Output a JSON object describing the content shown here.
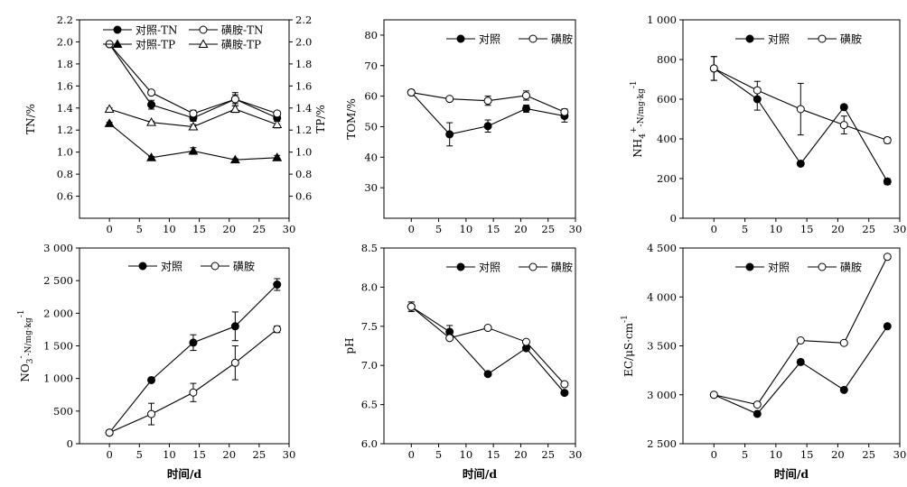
{
  "chart_data": [
    {
      "id": "panel-tn-tp",
      "type": "line",
      "x": [
        0,
        7,
        14,
        21,
        28
      ],
      "xlim": [
        -5,
        30
      ],
      "xticks": [
        0,
        5,
        10,
        15,
        20,
        25,
        30
      ],
      "xlabel": "",
      "ylabel": "TN/%",
      "ylim": [
        0.4,
        2.2
      ],
      "yticks": [
        0.6,
        0.8,
        1.0,
        1.2,
        1.4,
        1.6,
        1.8,
        2.0,
        2.2
      ],
      "ytick_labels": [
        "0.6",
        "0.8",
        "1.0",
        "1.2",
        "1.4",
        "1.6",
        "1.8",
        "2.0",
        "2.2"
      ],
      "y2label": "TP/%",
      "y2ticks": [
        0.6,
        0.8,
        1.0,
        1.2,
        1.4,
        1.6,
        1.8,
        2.0,
        2.2
      ],
      "y2tick_labels": [
        "0.6",
        "0.8",
        "1.0",
        "1.2",
        "1.4",
        "1.6",
        "1.8",
        "2.0",
        "2.2"
      ],
      "legend_position": "top-right",
      "series": [
        {
          "name": "对照-TN",
          "marker": "circle-filled",
          "values": [
            1.98,
            1.43,
            1.31,
            1.48,
            1.31
          ],
          "errors": [
            0,
            0.04,
            0.03,
            0.04,
            0.03
          ]
        },
        {
          "name": "磺胺-TN",
          "marker": "circle-open",
          "values": [
            1.98,
            1.54,
            1.35,
            1.48,
            1.35
          ],
          "errors": [
            0,
            0.02,
            0.03,
            0.06,
            0.02
          ]
        },
        {
          "name": "对照-TP",
          "marker": "triangle-filled",
          "values": [
            1.26,
            0.95,
            1.01,
            0.93,
            0.95
          ],
          "errors": [
            0.01,
            0.01,
            0.03,
            0.01,
            0.02
          ]
        },
        {
          "name": "磺胺-TP",
          "marker": "triangle-open",
          "values": [
            1.39,
            1.27,
            1.23,
            1.39,
            1.25
          ],
          "errors": [
            0.01,
            0.01,
            0.02,
            0.03,
            0.03
          ]
        }
      ]
    },
    {
      "id": "panel-tom",
      "type": "line",
      "x": [
        0,
        7,
        14,
        21,
        28
      ],
      "xlim": [
        -5,
        30
      ],
      "xticks": [
        0,
        5,
        10,
        15,
        20,
        25,
        30
      ],
      "xlabel": "",
      "ylabel": "TOM/%",
      "ylim": [
        20,
        85
      ],
      "yticks": [
        30,
        40,
        50,
        60,
        70,
        80
      ],
      "ytick_labels": [
        "30",
        "40",
        "50",
        "60",
        "70",
        "80"
      ],
      "legend_position": "top-right",
      "series": [
        {
          "name": "对照",
          "marker": "circle-filled",
          "values": [
            61.2,
            47.5,
            50.2,
            55.9,
            53.5
          ],
          "errors": [
            0.8,
            3.8,
            2.0,
            1.2,
            2.0
          ]
        },
        {
          "name": "磺胺",
          "marker": "circle-open",
          "values": [
            61.2,
            59.1,
            58.5,
            60.2,
            54.8
          ],
          "errors": [
            0.8,
            0.6,
            1.5,
            1.5,
            1.0
          ]
        }
      ]
    },
    {
      "id": "panel-nh4",
      "type": "line",
      "x": [
        0,
        7,
        14,
        21,
        28
      ],
      "xlim": [
        -5,
        30
      ],
      "xticks": [
        0,
        5,
        10,
        15,
        20,
        25,
        30
      ],
      "xlabel": "",
      "ylabel": "NH4+-N/mg·kg-1",
      "ylim": [
        0,
        1000
      ],
      "yticks": [
        0,
        200,
        400,
        600,
        800,
        1000
      ],
      "ytick_labels": [
        "0",
        "200",
        "400",
        "600",
        "800",
        "1 000"
      ],
      "legend_position": "top-right",
      "series": [
        {
          "name": "对照",
          "marker": "circle-filled",
          "values": [
            755,
            600,
            275,
            560,
            185
          ],
          "errors": [
            60,
            55,
            10,
            12,
            15
          ]
        },
        {
          "name": "磺胺",
          "marker": "circle-open",
          "values": [
            755,
            645,
            550,
            470,
            393
          ],
          "errors": [
            60,
            45,
            130,
            45,
            15
          ]
        }
      ]
    },
    {
      "id": "panel-no3",
      "type": "line",
      "x": [
        0,
        7,
        14,
        21,
        28
      ],
      "xlim": [
        -5,
        30
      ],
      "xticks": [
        0,
        5,
        10,
        15,
        20,
        25,
        30
      ],
      "xlabel": "时间/d",
      "ylabel": "NO3--N/mg·kg-1",
      "ylim": [
        0,
        3000
      ],
      "yticks": [
        0,
        500,
        1000,
        1500,
        2000,
        2500,
        3000
      ],
      "ytick_labels": [
        "0",
        "500",
        "1 000",
        "1 500",
        "2 000",
        "2 500",
        "3 000"
      ],
      "legend_position": "top-right",
      "series": [
        {
          "name": "对照",
          "marker": "circle-filled",
          "values": [
            170,
            975,
            1550,
            1800,
            2440
          ],
          "errors": [
            20,
            20,
            120,
            220,
            90
          ]
        },
        {
          "name": "磺胺",
          "marker": "circle-open",
          "values": [
            170,
            455,
            785,
            1240,
            1755
          ],
          "errors": [
            20,
            165,
            140,
            260,
            50
          ]
        }
      ]
    },
    {
      "id": "panel-ph",
      "type": "line",
      "x": [
        0,
        7,
        14,
        21,
        28
      ],
      "xlim": [
        -5,
        30
      ],
      "xticks": [
        0,
        5,
        10,
        15,
        20,
        25,
        30
      ],
      "xlabel": "时间/d",
      "ylabel": "pH",
      "ylim": [
        6.0,
        8.5
      ],
      "yticks": [
        6.0,
        6.5,
        7.0,
        7.5,
        8.0,
        8.5
      ],
      "ytick_labels": [
        "6.0",
        "6.5",
        "7.0",
        "7.5",
        "8.0",
        "8.5"
      ],
      "legend_position": "top-right",
      "series": [
        {
          "name": "对照",
          "marker": "circle-filled",
          "values": [
            7.75,
            7.43,
            6.89,
            7.22,
            6.65
          ],
          "errors": [
            0.06,
            0.08,
            0.01,
            0.01,
            0.02
          ]
        },
        {
          "name": "磺胺",
          "marker": "circle-open",
          "values": [
            7.75,
            7.35,
            7.48,
            7.3,
            6.76
          ],
          "errors": [
            0.06,
            0.02,
            0.01,
            0.01,
            0.03
          ]
        }
      ]
    },
    {
      "id": "panel-ec",
      "type": "line",
      "x": [
        0,
        7,
        14,
        21,
        28
      ],
      "xlim": [
        -5,
        30
      ],
      "xticks": [
        0,
        5,
        10,
        15,
        20,
        25,
        30
      ],
      "xlabel": "时间/d",
      "ylabel": "EC/μS·cm-1",
      "ylim": [
        2500,
        4500
      ],
      "yticks": [
        2500,
        3000,
        3500,
        4000,
        4500
      ],
      "ytick_labels": [
        "2 500",
        "3 000",
        "3 500",
        "4 000",
        "4 500"
      ],
      "legend_position": "top-right",
      "series": [
        {
          "name": "对照",
          "marker": "circle-filled",
          "values": [
            3000,
            2805,
            3335,
            3050,
            3700
          ],
          "errors": [
            10,
            10,
            25,
            10,
            10
          ]
        },
        {
          "name": "磺胺",
          "marker": "circle-open",
          "values": [
            3000,
            2900,
            3555,
            3530,
            4410
          ],
          "errors": [
            10,
            10,
            15,
            10,
            10
          ]
        }
      ]
    }
  ]
}
